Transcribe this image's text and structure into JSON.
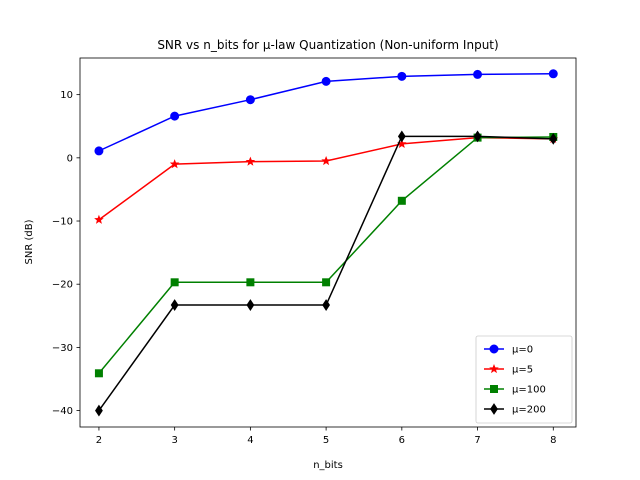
{
  "chart_data": {
    "type": "line",
    "title": "SNR vs n_bits for µ-law Quantization (Non-uniform Input)",
    "xlabel": "n_bits",
    "ylabel": "SNR (dB)",
    "x": [
      2,
      3,
      4,
      5,
      6,
      7,
      8
    ],
    "xlim": [
      1.75,
      8.3
    ],
    "ylim": [
      -42.6,
      15.8
    ],
    "xticks": [
      2,
      3,
      4,
      5,
      6,
      7,
      8
    ],
    "yticks": [
      -40,
      -30,
      -20,
      -10,
      0,
      10
    ],
    "xtick_labels": [
      "2",
      "3",
      "4",
      "5",
      "6",
      "7",
      "8"
    ],
    "ytick_labels": [
      "−40",
      "−30",
      "−20",
      "−10",
      "0",
      "10"
    ],
    "legend_position": "lower-right",
    "grid": false,
    "series": [
      {
        "name": "µ=0",
        "color": "#0000ff",
        "marker": "circle",
        "values": [
          1.1,
          6.6,
          9.2,
          12.1,
          12.9,
          13.2,
          13.3
        ]
      },
      {
        "name": "µ=5",
        "color": "#ff0000",
        "marker": "star",
        "values": [
          -9.8,
          -1.0,
          -0.6,
          -0.5,
          2.2,
          3.2,
          3.0
        ]
      },
      {
        "name": "µ=100",
        "color": "#008000",
        "marker": "square",
        "values": [
          -34.1,
          -19.7,
          -19.7,
          -19.7,
          -6.8,
          3.2,
          3.3
        ]
      },
      {
        "name": "µ=200",
        "color": "#000000",
        "marker": "diamond",
        "values": [
          -40.0,
          -23.3,
          -23.3,
          -23.3,
          3.4,
          3.4,
          3.0
        ]
      }
    ]
  }
}
